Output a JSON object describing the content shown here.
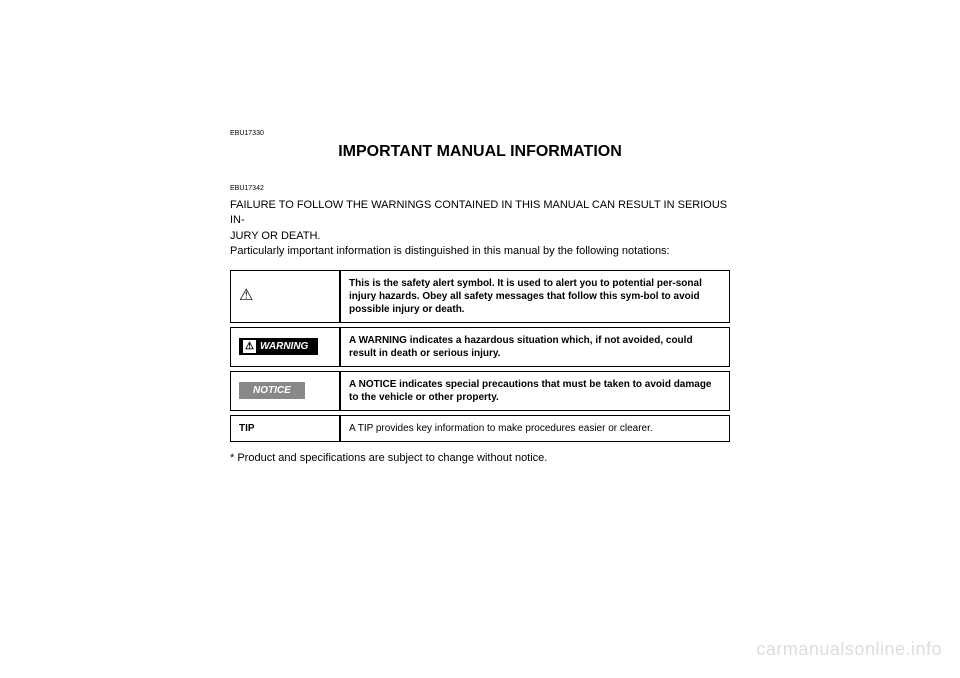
{
  "codes": {
    "top": "EBU17330",
    "second": "EBU17342"
  },
  "title": "IMPORTANT MANUAL INFORMATION",
  "intro_line1": "FAILURE TO FOLLOW THE WARNINGS CONTAINED IN THIS MANUAL CAN RESULT IN SERIOUS IN-",
  "intro_line2": "JURY OR DEATH.",
  "intro_line3": "Particularly important information is distinguished in this manual by the following notations:",
  "rows": {
    "alert": {
      "symbol": "⚠",
      "desc": "This is the safety alert symbol. It is used to alert you to potential per-sonal injury hazards. Obey all safety messages that follow this sym-bol to avoid possible injury or death."
    },
    "warning": {
      "label": "WARNING",
      "desc": "A WARNING indicates a hazardous situation which, if not avoided, could result in death or serious injury."
    },
    "notice": {
      "label": "NOTICE",
      "desc": "A NOTICE indicates special precautions that must be taken to avoid damage to the vehicle or other property."
    },
    "tip": {
      "label": "TIP",
      "desc": "A TIP provides key information to make procedures easier or clearer."
    }
  },
  "footnote": "* Product and specifications are subject to change without notice.",
  "watermark": "carmanualsonline.info",
  "colors": {
    "black": "#000000",
    "white": "#ffffff",
    "gray": "#888888",
    "watermark": "#dddddd"
  }
}
